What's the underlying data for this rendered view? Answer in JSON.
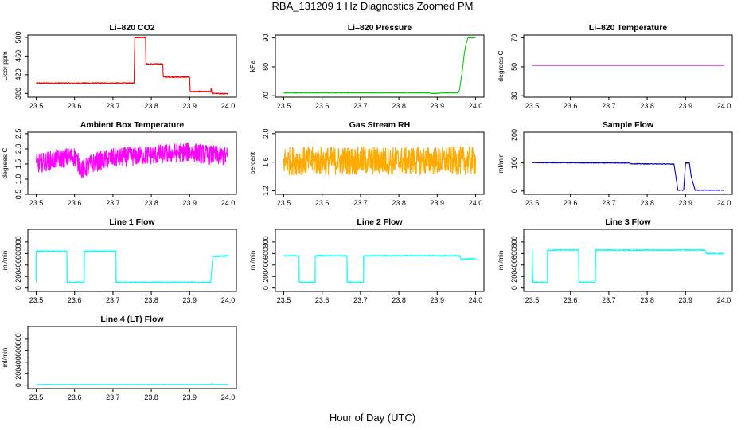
{
  "title": "RBA_131209  1 Hz Diagnostics Zoomed PM",
  "xlabel": "Hour of Day (UTC)",
  "chart_data": [
    {
      "type": "line",
      "title": "Li–820 CO2",
      "ylabel": "Licor ppm",
      "color": "#ff0000",
      "xlim": [
        23.5,
        24.0
      ],
      "xticks": [
        23.5,
        23.6,
        23.7,
        23.8,
        23.9,
        24.0
      ],
      "xtick_labels": [
        "23.5",
        "23.6",
        "23.7",
        "23.8",
        "23.9",
        "24.0"
      ],
      "ylim": [
        372,
        505
      ],
      "yticks": [
        380,
        420,
        460,
        500
      ],
      "ytick_labels": [
        "380",
        "420",
        "460",
        "500"
      ],
      "noise": 1.2,
      "x": [
        23.5,
        23.755,
        23.756,
        23.757,
        23.785,
        23.786,
        23.83,
        23.831,
        23.9,
        23.901,
        23.955,
        23.956,
        23.958,
        23.96,
        24.0
      ],
      "y": [
        402,
        402,
        455,
        500,
        500,
        443,
        443,
        415,
        415,
        384,
        384,
        393,
        381,
        380,
        379
      ]
    },
    {
      "type": "line",
      "title": "Li–820 Pressure",
      "ylabel": "kPa",
      "color": "#00cc00",
      "xlim": [
        23.5,
        24.0
      ],
      "xticks": [
        23.5,
        23.6,
        23.7,
        23.8,
        23.9,
        24.0
      ],
      "xtick_labels": [
        "23.5",
        "23.6",
        "23.7",
        "23.8",
        "23.9",
        "24.0"
      ],
      "ylim": [
        69.5,
        91
      ],
      "yticks": [
        70,
        80,
        90
      ],
      "ytick_labels": [
        "70",
        "80",
        "90"
      ],
      "noise": 0.1,
      "x": [
        23.5,
        23.88,
        23.885,
        23.9,
        23.91,
        23.955,
        23.958,
        23.965,
        23.97,
        23.975,
        23.98,
        24.0
      ],
      "y": [
        71,
        71,
        70.8,
        70.8,
        71,
        71,
        72,
        78,
        84,
        88,
        90,
        90
      ]
    },
    {
      "type": "line",
      "title": "Li–820 Temperature",
      "ylabel": "degrees C",
      "color": "#cc00cc",
      "xlim": [
        23.5,
        24.0
      ],
      "xticks": [
        23.5,
        23.6,
        23.7,
        23.8,
        23.9,
        24.0
      ],
      "xtick_labels": [
        "23.5",
        "23.6",
        "23.7",
        "23.8",
        "23.9",
        "24.0"
      ],
      "ylim": [
        29,
        72
      ],
      "yticks": [
        30,
        50,
        70
      ],
      "ytick_labels": [
        "30",
        "50",
        "70"
      ],
      "noise": 0,
      "x": [
        23.5,
        24.0
      ],
      "y": [
        51,
        51
      ]
    },
    {
      "type": "line",
      "title": "Ambient Box Temperature",
      "ylabel": "degrees C",
      "color": "#ff00ff",
      "xlim": [
        23.5,
        24.0
      ],
      "xticks": [
        23.5,
        23.6,
        23.7,
        23.8,
        23.9,
        24.0
      ],
      "xtick_labels": [
        "23.5",
        "23.6",
        "23.7",
        "23.8",
        "23.9",
        "24.0"
      ],
      "ylim": [
        0.5,
        2.55
      ],
      "yticks": [
        0.5,
        1.0,
        1.5,
        2.0,
        2.5
      ],
      "ytick_labels": [
        "0.5",
        "1.0",
        "1.5",
        "2.0",
        "2.5"
      ],
      "noise": 0.32,
      "x": [
        23.5,
        23.55,
        23.6,
        23.62,
        23.65,
        23.7,
        23.75,
        23.8,
        23.85,
        23.9,
        23.95,
        24.0
      ],
      "y": [
        1.5,
        1.65,
        1.75,
        1.3,
        1.55,
        1.7,
        1.75,
        1.8,
        1.85,
        1.9,
        1.8,
        1.75
      ]
    },
    {
      "type": "line",
      "title": "Gas Stream RH",
      "ylabel": "percent",
      "color": "#ffaa00",
      "xlim": [
        23.5,
        24.0
      ],
      "xticks": [
        23.5,
        23.6,
        23.7,
        23.8,
        23.9,
        24.0
      ],
      "xtick_labels": [
        "23.5",
        "23.6",
        "23.7",
        "23.8",
        "23.9",
        "24.0"
      ],
      "ylim": [
        1.15,
        2.02
      ],
      "yticks": [
        1.2,
        1.6,
        2.0
      ],
      "ytick_labels": [
        "1.2",
        "1.6",
        "2.0"
      ],
      "noise": 0.2,
      "x": [
        23.5,
        24.0
      ],
      "y": [
        1.62,
        1.62
      ]
    },
    {
      "type": "line",
      "title": "Sample Flow",
      "ylabel": "ml/min",
      "color": "#0000cc",
      "xlim": [
        23.5,
        24.0
      ],
      "xticks": [
        23.5,
        23.6,
        23.7,
        23.8,
        23.9,
        24.0
      ],
      "xtick_labels": [
        "23.5",
        "23.6",
        "23.7",
        "23.8",
        "23.9",
        "24.0"
      ],
      "ylim": [
        -12,
        210
      ],
      "yticks": [
        0,
        100,
        200
      ],
      "ytick_labels": [
        "0",
        "100",
        "200"
      ],
      "noise": 1.2,
      "x": [
        23.5,
        23.75,
        23.76,
        23.87,
        23.875,
        23.88,
        23.895,
        23.9,
        23.91,
        23.915,
        23.925,
        24.0
      ],
      "y": [
        101,
        100,
        97,
        96,
        50,
        3,
        3,
        100,
        100,
        50,
        3,
        3
      ]
    },
    {
      "type": "line",
      "title": "Line 1 Flow",
      "ylabel": "ml/min",
      "color": "#00ffff",
      "xlim": [
        23.5,
        24.0
      ],
      "xticks": [
        23.5,
        23.6,
        23.7,
        23.8,
        23.9,
        24.0
      ],
      "xtick_labels": [
        "23.5",
        "23.6",
        "23.7",
        "23.8",
        "23.9",
        "24.0"
      ],
      "ylim": [
        -60,
        1020
      ],
      "yticks": [
        0,
        200,
        400,
        600,
        800
      ],
      "ytick_labels": [
        "0",
        "200",
        "400",
        "600",
        "800"
      ],
      "noise": 10,
      "x": [
        23.5,
        23.5,
        23.58,
        23.58,
        23.625,
        23.625,
        23.708,
        23.708,
        23.955,
        23.96,
        24.0
      ],
      "y": [
        100,
        640,
        640,
        100,
        100,
        640,
        640,
        100,
        100,
        540,
        560
      ]
    },
    {
      "type": "line",
      "title": "Line 2 Flow",
      "ylabel": "ml/min",
      "color": "#00ffff",
      "xlim": [
        23.5,
        24.0
      ],
      "xticks": [
        23.5,
        23.6,
        23.7,
        23.8,
        23.9,
        24.0
      ],
      "xtick_labels": [
        "23.5",
        "23.6",
        "23.7",
        "23.8",
        "23.9",
        "24.0"
      ],
      "ylim": [
        -60,
        1020
      ],
      "yticks": [
        0,
        200,
        400,
        600,
        800
      ],
      "ytick_labels": [
        "0",
        "200",
        "400",
        "600",
        "800"
      ],
      "noise": 10,
      "x": [
        23.5,
        23.54,
        23.54,
        23.582,
        23.582,
        23.665,
        23.665,
        23.708,
        23.708,
        23.958,
        23.962,
        24.0
      ],
      "y": [
        560,
        560,
        100,
        100,
        560,
        560,
        100,
        100,
        560,
        560,
        500,
        510
      ]
    },
    {
      "type": "line",
      "title": "Line 3 Flow",
      "ylabel": "ml/min",
      "color": "#00ffff",
      "xlim": [
        23.5,
        24.0
      ],
      "xticks": [
        23.5,
        23.6,
        23.7,
        23.8,
        23.9,
        24.0
      ],
      "xtick_labels": [
        "23.5",
        "23.6",
        "23.7",
        "23.8",
        "23.9",
        "24.0"
      ],
      "ylim": [
        -60,
        1020
      ],
      "yticks": [
        0,
        200,
        400,
        600,
        800
      ],
      "ytick_labels": [
        "0",
        "200",
        "400",
        "600",
        "800"
      ],
      "noise": 10,
      "x": [
        23.5,
        23.5,
        23.502,
        23.54,
        23.54,
        23.622,
        23.622,
        23.665,
        23.665,
        23.95,
        23.955,
        24.0
      ],
      "y": [
        100,
        660,
        100,
        100,
        660,
        660,
        100,
        100,
        660,
        660,
        600,
        600
      ]
    },
    {
      "type": "line",
      "title": "Line 4 (LT) Flow",
      "ylabel": "ml/min",
      "color": "#00ffff",
      "xlim": [
        23.5,
        24.0
      ],
      "xticks": [
        23.5,
        23.6,
        23.7,
        23.8,
        23.9,
        24.0
      ],
      "xtick_labels": [
        "23.5",
        "23.6",
        "23.7",
        "23.8",
        "23.9",
        "24.0"
      ],
      "ylim": [
        -60,
        1020
      ],
      "yticks": [
        0,
        200,
        400,
        600,
        800
      ],
      "ytick_labels": [
        "0",
        "200",
        "400",
        "600",
        "800"
      ],
      "noise": 3,
      "x": [
        23.5,
        23.955,
        23.958,
        23.962,
        24.0
      ],
      "y": [
        12,
        12,
        30,
        12,
        12
      ]
    }
  ]
}
